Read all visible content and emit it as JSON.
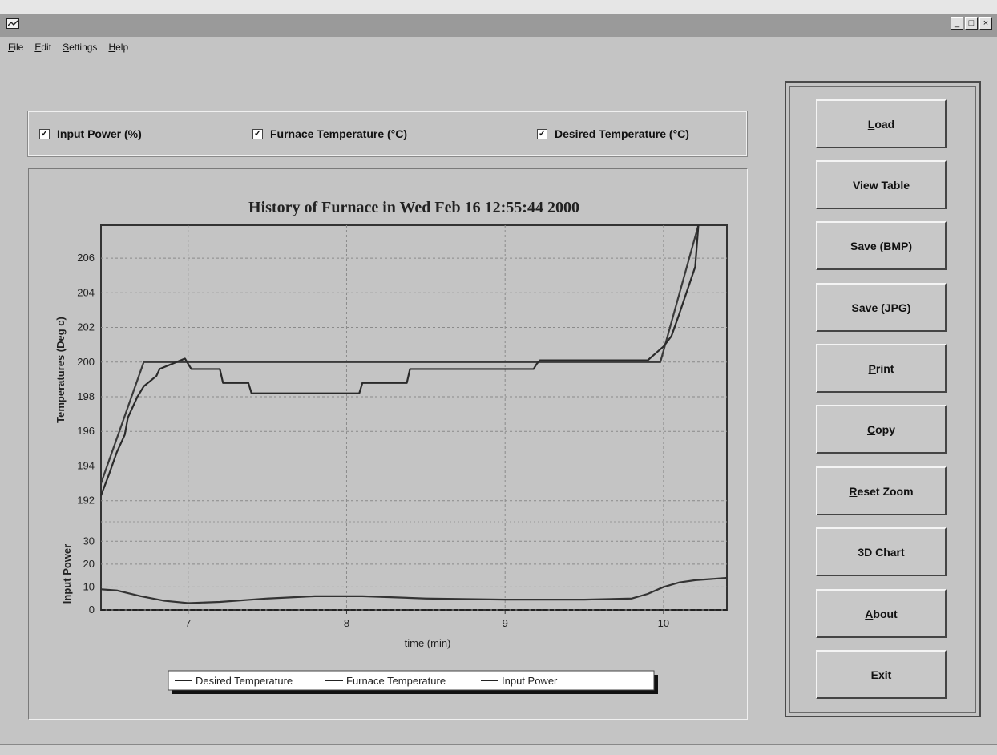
{
  "menu": [
    "File",
    "Edit",
    "Settings",
    "Help"
  ],
  "window_controls": [
    "_",
    "□",
    "×"
  ],
  "checkboxes": [
    {
      "label": "Input Power (%)",
      "checked": true
    },
    {
      "label": "Furnace Temperature (°C)",
      "checked": true
    },
    {
      "label": "Desired Temperature (°C)",
      "checked": true
    }
  ],
  "buttons": [
    {
      "pre": "",
      "ul": "L",
      "post": "oad"
    },
    {
      "pre": "View Table",
      "ul": "",
      "post": ""
    },
    {
      "pre": "Save (BMP)",
      "ul": "",
      "post": ""
    },
    {
      "pre": "Save (JPG)",
      "ul": "",
      "post": ""
    },
    {
      "pre": "",
      "ul": "P",
      "post": "rint"
    },
    {
      "pre": "",
      "ul": "C",
      "post": "opy"
    },
    {
      "pre": "",
      "ul": "R",
      "post": "eset Zoom"
    },
    {
      "pre": "3D Chart",
      "ul": "",
      "post": ""
    },
    {
      "pre": "",
      "ul": "A",
      "post": "bout"
    },
    {
      "pre": "E",
      "ul": "x",
      "post": "it"
    }
  ],
  "chart_data": {
    "type": "line",
    "title": "History of Furnace in Wed Feb 16 12:55:44 2000",
    "xlabel": "time (min)",
    "xlim": [
      6.45,
      10.4
    ],
    "xticks": [
      7,
      8,
      9,
      10
    ],
    "top_panel": {
      "ylabel": "Temperatures (Deg c)",
      "ylim": [
        191.2,
        207.9
      ],
      "yticks": [
        192,
        194,
        196,
        198,
        200,
        202,
        204,
        206
      ],
      "series": [
        {
          "name": "Desired Temperature",
          "x": [
            6.45,
            6.72,
            9.98,
            10.22
          ],
          "y": [
            193,
            200,
            200,
            208
          ]
        },
        {
          "name": "Furnace Temperature",
          "x": [
            6.45,
            6.5,
            6.55,
            6.6,
            6.62,
            6.68,
            6.72,
            6.8,
            6.82,
            6.98,
            7.02,
            7.2,
            7.22,
            7.38,
            7.4,
            8.08,
            8.1,
            8.38,
            8.4,
            9.18,
            9.2,
            9.22,
            9.4,
            9.9,
            9.95,
            10.0,
            10.05,
            10.1,
            10.2,
            10.22
          ],
          "y": [
            192.3,
            193.5,
            194.8,
            195.8,
            196.8,
            198,
            198.6,
            199.2,
            199.6,
            200.2,
            199.6,
            199.6,
            198.8,
            198.8,
            198.2,
            198.2,
            198.8,
            198.8,
            199.6,
            199.6,
            199.9,
            200.1,
            200.1,
            200.1,
            200.5,
            200.9,
            201.5,
            202.8,
            205.5,
            208
          ]
        }
      ]
    },
    "bottom_panel": {
      "ylabel": "Input Power",
      "ylim": [
        0,
        35
      ],
      "yticks": [
        0,
        10,
        20,
        30
      ],
      "series": [
        {
          "name": "Input Power",
          "x": [
            6.45,
            6.55,
            6.7,
            6.85,
            7.0,
            7.2,
            7.5,
            7.8,
            8.1,
            8.5,
            9.0,
            9.5,
            9.8,
            9.9,
            10.0,
            10.1,
            10.2,
            10.4
          ],
          "y": [
            9,
            8.5,
            6,
            4,
            3,
            3.5,
            5,
            6,
            6,
            5,
            4.5,
            4.5,
            5,
            7,
            10,
            12,
            13,
            14
          ]
        }
      ]
    },
    "legend": [
      "Desired Temperature",
      "Furnace Temperature",
      "Input Power"
    ],
    "legend_position": "bottom",
    "grid": true
  }
}
